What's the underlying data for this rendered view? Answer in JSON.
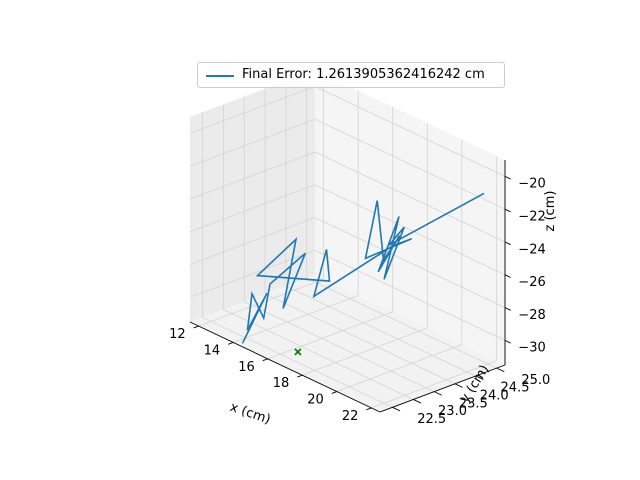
{
  "chart_data": {
    "type": "line3d",
    "series": [
      {
        "name": "Final Error: 1.2613905362416242 cm",
        "color": "#1f77b4",
        "points": [
          [
            22.0,
            24.9,
            -21.0
          ],
          [
            19.4,
            23.7,
            -24.3
          ],
          [
            19.8,
            23.9,
            -23.2
          ],
          [
            19.6,
            23.5,
            -26.1
          ],
          [
            19.5,
            23.9,
            -22.7
          ],
          [
            19.5,
            23.4,
            -25.6
          ],
          [
            18.8,
            24.2,
            -24.5
          ],
          [
            20.0,
            23.7,
            -23.5
          ],
          [
            18.6,
            23.9,
            -25.8
          ],
          [
            19.2,
            23.5,
            -21.5
          ],
          [
            17.8,
            23.8,
            -26.0
          ],
          [
            20.0,
            24.0,
            -23.9
          ],
          [
            18.2,
            24.3,
            -25.5
          ],
          [
            16.5,
            23.1,
            -28.3
          ],
          [
            15.3,
            23.9,
            -26.8
          ],
          [
            16.2,
            23.6,
            -28.0
          ],
          [
            14.2,
            22.7,
            -27.8
          ],
          [
            14.5,
            23.5,
            -26.2
          ],
          [
            15.2,
            22.9,
            -29.5
          ],
          [
            14.8,
            23.6,
            -27.0
          ],
          [
            14.2,
            23.0,
            -28.6
          ],
          [
            14.8,
            22.6,
            -30.0
          ],
          [
            13.4,
            22.9,
            -29.5
          ],
          [
            14.1,
            22.5,
            -31.0
          ],
          [
            13.3,
            23.3,
            -29.9
          ],
          [
            14.3,
            22.3,
            -31.5
          ]
        ]
      }
    ],
    "markers": [
      {
        "label": "x",
        "color": "#008000",
        "point": [
          16.3,
          22.8,
          -31.5
        ]
      }
    ],
    "xlabel": "x (cm)",
    "ylabel": "y (cm)",
    "zlabel": "z (cm)",
    "xlim": [
      11.5,
      22.5
    ],
    "ylim": [
      22.2,
      25.2
    ],
    "zlim": [
      -31.5,
      -19.0
    ],
    "xticks": [
      "12",
      "14",
      "16",
      "18",
      "20",
      "22"
    ],
    "yticks": [
      "22.5",
      "23.0",
      "23.5",
      "24.0",
      "24.5",
      "25.0"
    ],
    "zticks": [
      "−20",
      "−22",
      "−24",
      "−26",
      "−28",
      "−30"
    ],
    "grid": true,
    "legend_position": "top"
  }
}
